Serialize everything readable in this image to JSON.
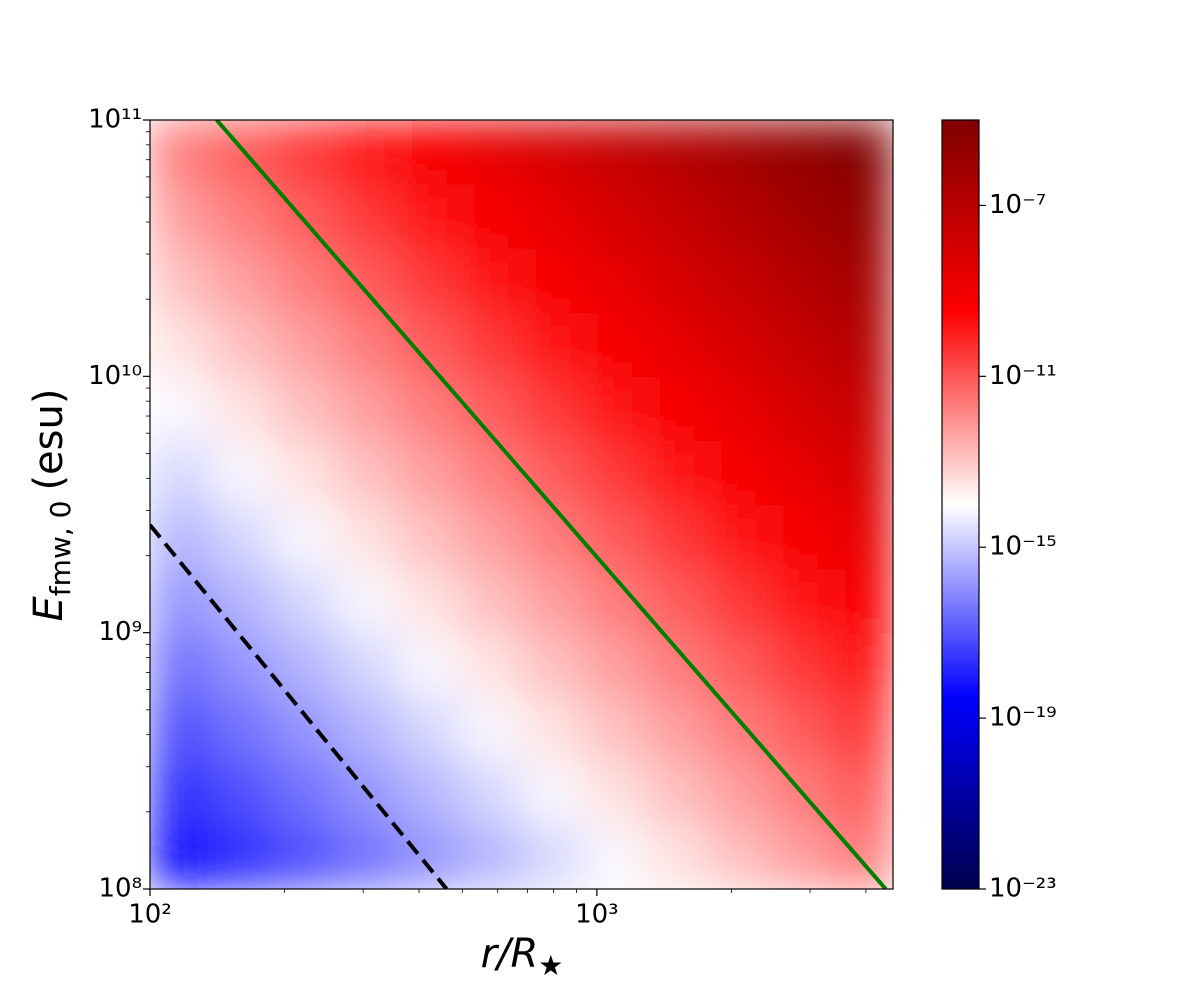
{
  "chart_data": {
    "type": "heatmap",
    "xlabel": {
      "symbol": "r/R",
      "subscript": "★"
    },
    "ylabel": {
      "symbol": "E",
      "subscript": "fmw, 0",
      "unit": "(esu)"
    },
    "xlog": true,
    "ylog": true,
    "xlim": [
      100,
      4600
    ],
    "ylim": [
      100000000.0,
      100000000000.0
    ],
    "xticks": [
      {
        "value": 100,
        "label": "10²"
      },
      {
        "value": 1000,
        "label": "10³"
      }
    ],
    "xminorticks": [
      200,
      300,
      400,
      500,
      600,
      700,
      800,
      900,
      2000,
      3000,
      4000
    ],
    "yticks": [
      {
        "value": 100000000.0,
        "label": "10⁸"
      },
      {
        "value": 1000000000.0,
        "label": "10⁹"
      },
      {
        "value": 10000000000.0,
        "label": "10¹⁰"
      },
      {
        "value": 100000000000.0,
        "label": "10¹¹"
      }
    ],
    "yminorticks": [
      200000000.0,
      300000000.0,
      400000000.0,
      500000000.0,
      600000000.0,
      700000000.0,
      800000000.0,
      900000000.0,
      2000000000.0,
      3000000000.0,
      4000000000.0,
      5000000000.0,
      6000000000.0,
      7000000000.0,
      8000000000.0,
      9000000000.0,
      20000000000.0,
      30000000000.0,
      40000000000.0,
      50000000000.0,
      60000000000.0,
      70000000000.0,
      80000000000.0,
      90000000000.0
    ],
    "x": [
      117,
      161,
      222,
      305,
      420,
      578,
      794,
      1094,
      1504,
      2070,
      2845,
      3917
    ],
    "y": [
      133000000.0,
      237000000.0,
      422000000.0,
      750000000.0,
      1330000000.0,
      2370000000.0,
      4220000000.0,
      7500000000.0,
      13300000000.0,
      23700000000.0,
      42200000000.0,
      75000000000.0
    ],
    "z": [
      [
        5e-19,
        2e-18,
        7.9e-18,
        3.2e-17,
        1.3e-16,
        5e-16,
        2e-15,
        7.9e-15,
        3.2e-14,
        1.3e-13,
        5e-13,
        2e-12
      ],
      [
        2e-18,
        7.9e-18,
        3.2e-17,
        1.3e-16,
        5e-16,
        2e-15,
        7.9e-15,
        3.2e-14,
        1.3e-13,
        5e-13,
        2e-12,
        7.9e-12
      ],
      [
        7.9e-18,
        3.2e-17,
        1.3e-16,
        5e-16,
        2e-15,
        7.9e-15,
        3.2e-14,
        1.3e-13,
        5e-13,
        2e-12,
        7.9e-12,
        3.2e-11
      ],
      [
        3.2e-17,
        1.3e-16,
        5e-16,
        2e-15,
        7.9e-15,
        3.2e-14,
        1.3e-13,
        5e-13,
        2e-12,
        7.9e-12,
        3.2e-11,
        1.3e-10
      ],
      [
        1.3e-16,
        5e-16,
        2e-15,
        7.9e-15,
        3.2e-14,
        1.3e-13,
        5e-13,
        2e-12,
        7.9e-12,
        3.2e-11,
        1.3e-10,
        5e-10
      ],
      [
        5e-16,
        2e-15,
        7.9e-15,
        3.2e-14,
        1.3e-13,
        5e-13,
        2e-12,
        7.9e-12,
        3.2e-11,
        1.3e-10,
        5e-10,
        2e-09
      ],
      [
        2e-15,
        7.9e-15,
        3.2e-14,
        1.3e-13,
        5e-13,
        2e-12,
        7.9e-12,
        3.2e-11,
        1.3e-10,
        5e-10,
        2e-09,
        7.9e-09
      ],
      [
        7.9e-15,
        3.2e-14,
        1.3e-13,
        5e-13,
        2e-12,
        7.9e-12,
        3.2e-11,
        1.3e-10,
        5e-10,
        2e-09,
        7.9e-09,
        3.2e-08
      ],
      [
        3.2e-14,
        1.3e-13,
        5e-13,
        2e-12,
        7.9e-12,
        3.2e-11,
        1.3e-10,
        5e-10,
        2e-09,
        7.9e-09,
        3.2e-08,
        1.3e-07
      ],
      [
        1.3e-13,
        5e-13,
        2e-12,
        7.9e-12,
        3.2e-11,
        1.3e-10,
        5e-10,
        2e-09,
        7.9e-09,
        3.2e-08,
        1.3e-07,
        5e-07
      ],
      [
        5e-13,
        2e-12,
        7.9e-12,
        3.2e-11,
        1.3e-10,
        5e-10,
        2e-09,
        7.9e-09,
        3.2e-08,
        1.3e-07,
        5e-07,
        2e-06
      ],
      [
        2e-12,
        7.9e-12,
        3.2e-11,
        1.3e-10,
        5e-10,
        2e-09,
        7.9e-09,
        3.2e-08,
        1.3e-07,
        5e-07,
        2e-06,
        7.9e-06
      ]
    ],
    "lines": [
      {
        "x": [
          141,
          4430
        ],
        "y": [
          100000000000.0,
          100000000.0
        ],
        "color": "#007f00",
        "dash": false
      },
      {
        "x": [
          100,
          461
        ],
        "y": [
          2630000000.0,
          100000000.0
        ],
        "color": "#000000",
        "dash": true
      }
    ],
    "colorbar": {
      "cmap": "seismic",
      "log": true,
      "lim": [
        1e-23,
        1e-05
      ],
      "ticks": [
        {
          "value": 1e-23,
          "label": "10⁻²³"
        },
        {
          "value": 1e-19,
          "label": "10⁻¹⁹"
        },
        {
          "value": 1e-15,
          "label": "10⁻¹⁵"
        },
        {
          "value": 1e-11,
          "label": "10⁻¹¹"
        },
        {
          "value": 1e-07,
          "label": "10⁻⁷"
        }
      ]
    }
  }
}
